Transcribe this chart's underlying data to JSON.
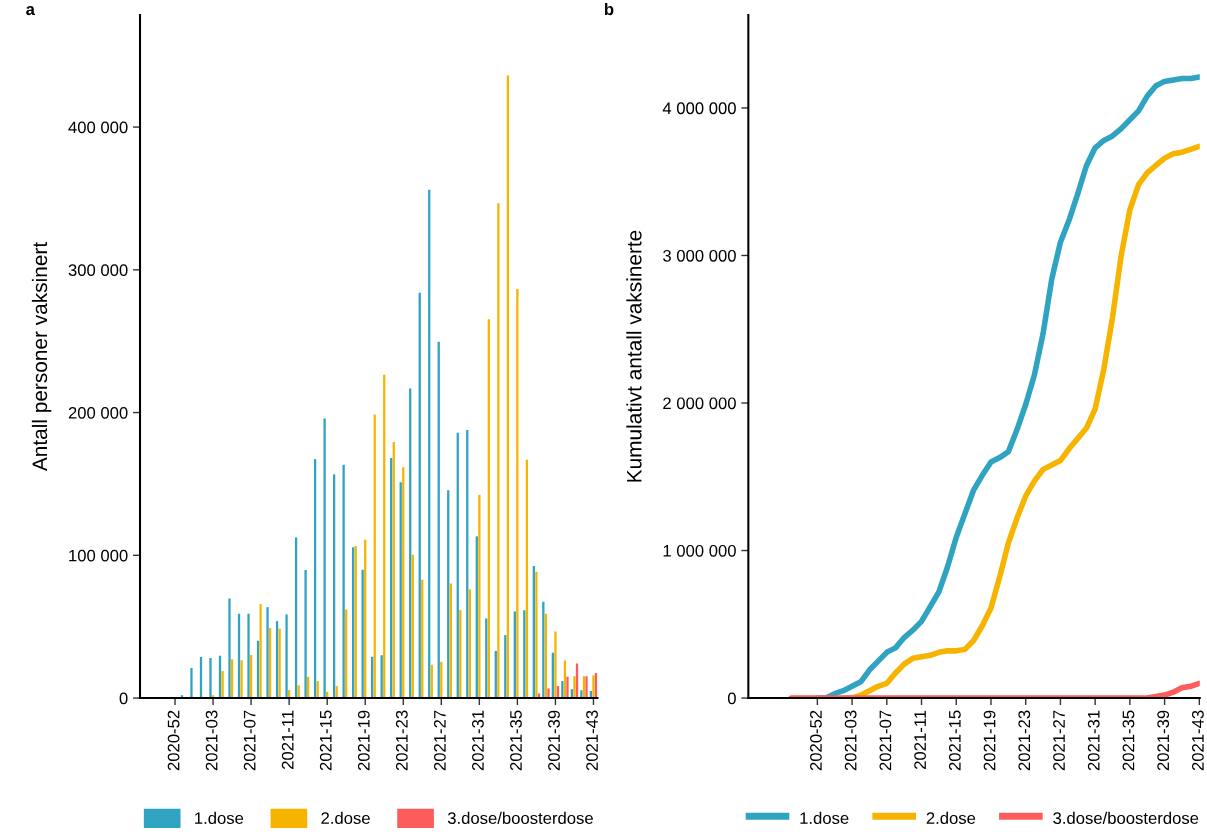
{
  "chart_data": [
    {
      "type": "bar",
      "annotations": [
        "a"
      ],
      "ylabel": "Antall personer vaksinert",
      "legend": "bottom",
      "grid": false,
      "categories": [
        null,
        null,
        null,
        "2020-52",
        null,
        null,
        null,
        "2021-03",
        null,
        null,
        null,
        "2021-07",
        null,
        null,
        null,
        "2021-11",
        null,
        null,
        null,
        "2021-15",
        null,
        null,
        null,
        "2021-19",
        null,
        null,
        null,
        "2021-23",
        null,
        null,
        null,
        "2021-27",
        null,
        null,
        null,
        "2021-31",
        null,
        null,
        null,
        "2021-35",
        null,
        null,
        null,
        "2021-39",
        null,
        null,
        null,
        "2021-43"
      ],
      "ylim": [
        0,
        478500
      ],
      "yticks": [
        0,
        {
          "value": 100000,
          "label": "100 000"
        },
        {
          "value": 200000,
          "label": "200 000"
        },
        {
          "value": 300000,
          "label": "300 000"
        },
        {
          "value": 400000,
          "label": "400 000"
        }
      ],
      "series": [
        {
          "name": "1.dose",
          "color": "#2fa3c1",
          "values": [
            0,
            0,
            0,
            0,
            2000,
            21000,
            28700,
            28000,
            29600,
            69800,
            59000,
            59000,
            40100,
            63700,
            53900,
            58600,
            112600,
            89700,
            167400,
            195900,
            156700,
            163400,
            105600,
            89900,
            28900,
            30000,
            168200,
            151200,
            216900,
            284000,
            356100,
            249600,
            145600,
            185900,
            187700,
            113300,
            55800,
            33000,
            44100,
            60700,
            61600,
            92500,
            67400,
            31800,
            12000,
            6100,
            5500,
            5000
          ]
        },
        {
          "name": "2.dose",
          "color": "#f6b400",
          "values": [
            0,
            0,
            0,
            0,
            0,
            0,
            0,
            2000,
            19000,
            27100,
            26400,
            30100,
            65800,
            49000,
            48600,
            5600,
            8900,
            14900,
            11900,
            4400,
            8400,
            62100,
            106500,
            110900,
            198700,
            226500,
            179300,
            161700,
            100400,
            82900,
            23300,
            25400,
            80300,
            61600,
            76200,
            142400,
            265300,
            346700,
            436100,
            286600,
            166900,
            88400,
            59000,
            46700,
            26300,
            15200,
            15200,
            16000
          ]
        },
        {
          "name": "3.dose/boosterdose",
          "color": "#fc5c5c",
          "values": [
            null,
            null,
            null,
            null,
            null,
            null,
            null,
            null,
            null,
            null,
            null,
            null,
            null,
            null,
            null,
            null,
            null,
            null,
            null,
            null,
            null,
            null,
            null,
            null,
            null,
            null,
            null,
            null,
            null,
            null,
            null,
            null,
            null,
            null,
            null,
            null,
            null,
            null,
            null,
            null,
            null,
            3200,
            6700,
            8500,
            14900,
            24200,
            15200,
            17500
          ]
        }
      ]
    },
    {
      "type": "line",
      "annotations": [
        "b"
      ],
      "ylabel": "Kumulativt antall vaksinerte",
      "legend": "bottom",
      "grid": false,
      "categories": [
        null,
        null,
        null,
        "2020-52",
        null,
        null,
        null,
        "2021-03",
        null,
        null,
        null,
        "2021-07",
        null,
        null,
        null,
        "2021-11",
        null,
        null,
        null,
        "2021-15",
        null,
        null,
        null,
        "2021-19",
        null,
        null,
        null,
        "2021-23",
        null,
        null,
        null,
        "2021-27",
        null,
        null,
        null,
        "2021-31",
        null,
        null,
        null,
        "2021-35",
        null,
        null,
        null,
        "2021-39",
        null,
        null,
        null,
        "2021-43"
      ],
      "ylim": [
        0,
        4630000
      ],
      "yticks": [
        0,
        {
          "value": 1000000,
          "label": "1 000 000"
        },
        {
          "value": 2000000,
          "label": "2 000 000"
        },
        {
          "value": 3000000,
          "label": "3 000 000"
        },
        {
          "value": 4000000,
          "label": "4 000 000"
        }
      ],
      "series": [
        {
          "name": "1.dose",
          "color": "#2fa3c1",
          "values": [
            null,
            null,
            null,
            0,
            0,
            30000,
            50000,
            80000,
            110000,
            190000,
            250000,
            310000,
            340000,
            410000,
            460000,
            520000,
            620000,
            720000,
            890000,
            1090000,
            1250000,
            1410000,
            1510000,
            1600000,
            1630000,
            1670000,
            1820000,
            1990000,
            2190000,
            2470000,
            2840000,
            3090000,
            3240000,
            3420000,
            3610000,
            3730000,
            3780000,
            3810000,
            3860000,
            3920000,
            3980000,
            4080000,
            4150000,
            4180000,
            4190000,
            4200000,
            4200000,
            4210000
          ]
        },
        {
          "name": "2.dose",
          "color": "#f6b400",
          "values": [
            null,
            null,
            null,
            null,
            null,
            null,
            0,
            0,
            20000,
            50000,
            80000,
            100000,
            170000,
            230000,
            270000,
            280000,
            290000,
            310000,
            320000,
            320000,
            330000,
            390000,
            490000,
            610000,
            820000,
            1050000,
            1220000,
            1370000,
            1470000,
            1550000,
            1580000,
            1610000,
            1690000,
            1760000,
            1830000,
            1960000,
            2230000,
            2580000,
            3000000,
            3310000,
            3480000,
            3560000,
            3610000,
            3660000,
            3690000,
            3700000,
            3720000,
            3740000
          ]
        },
        {
          "name": "3.dose/boosterdose",
          "color": "#fc5c5c",
          "values": [
            0,
            0,
            0,
            0,
            0,
            0,
            0,
            0,
            0,
            0,
            0,
            0,
            0,
            0,
            0,
            0,
            0,
            0,
            0,
            0,
            0,
            0,
            0,
            0,
            0,
            0,
            0,
            0,
            0,
            0,
            0,
            0,
            0,
            0,
            0,
            0,
            0,
            0,
            0,
            0,
            0,
            0,
            10000,
            20000,
            40000,
            70000,
            80000,
            100000
          ]
        }
      ]
    }
  ]
}
